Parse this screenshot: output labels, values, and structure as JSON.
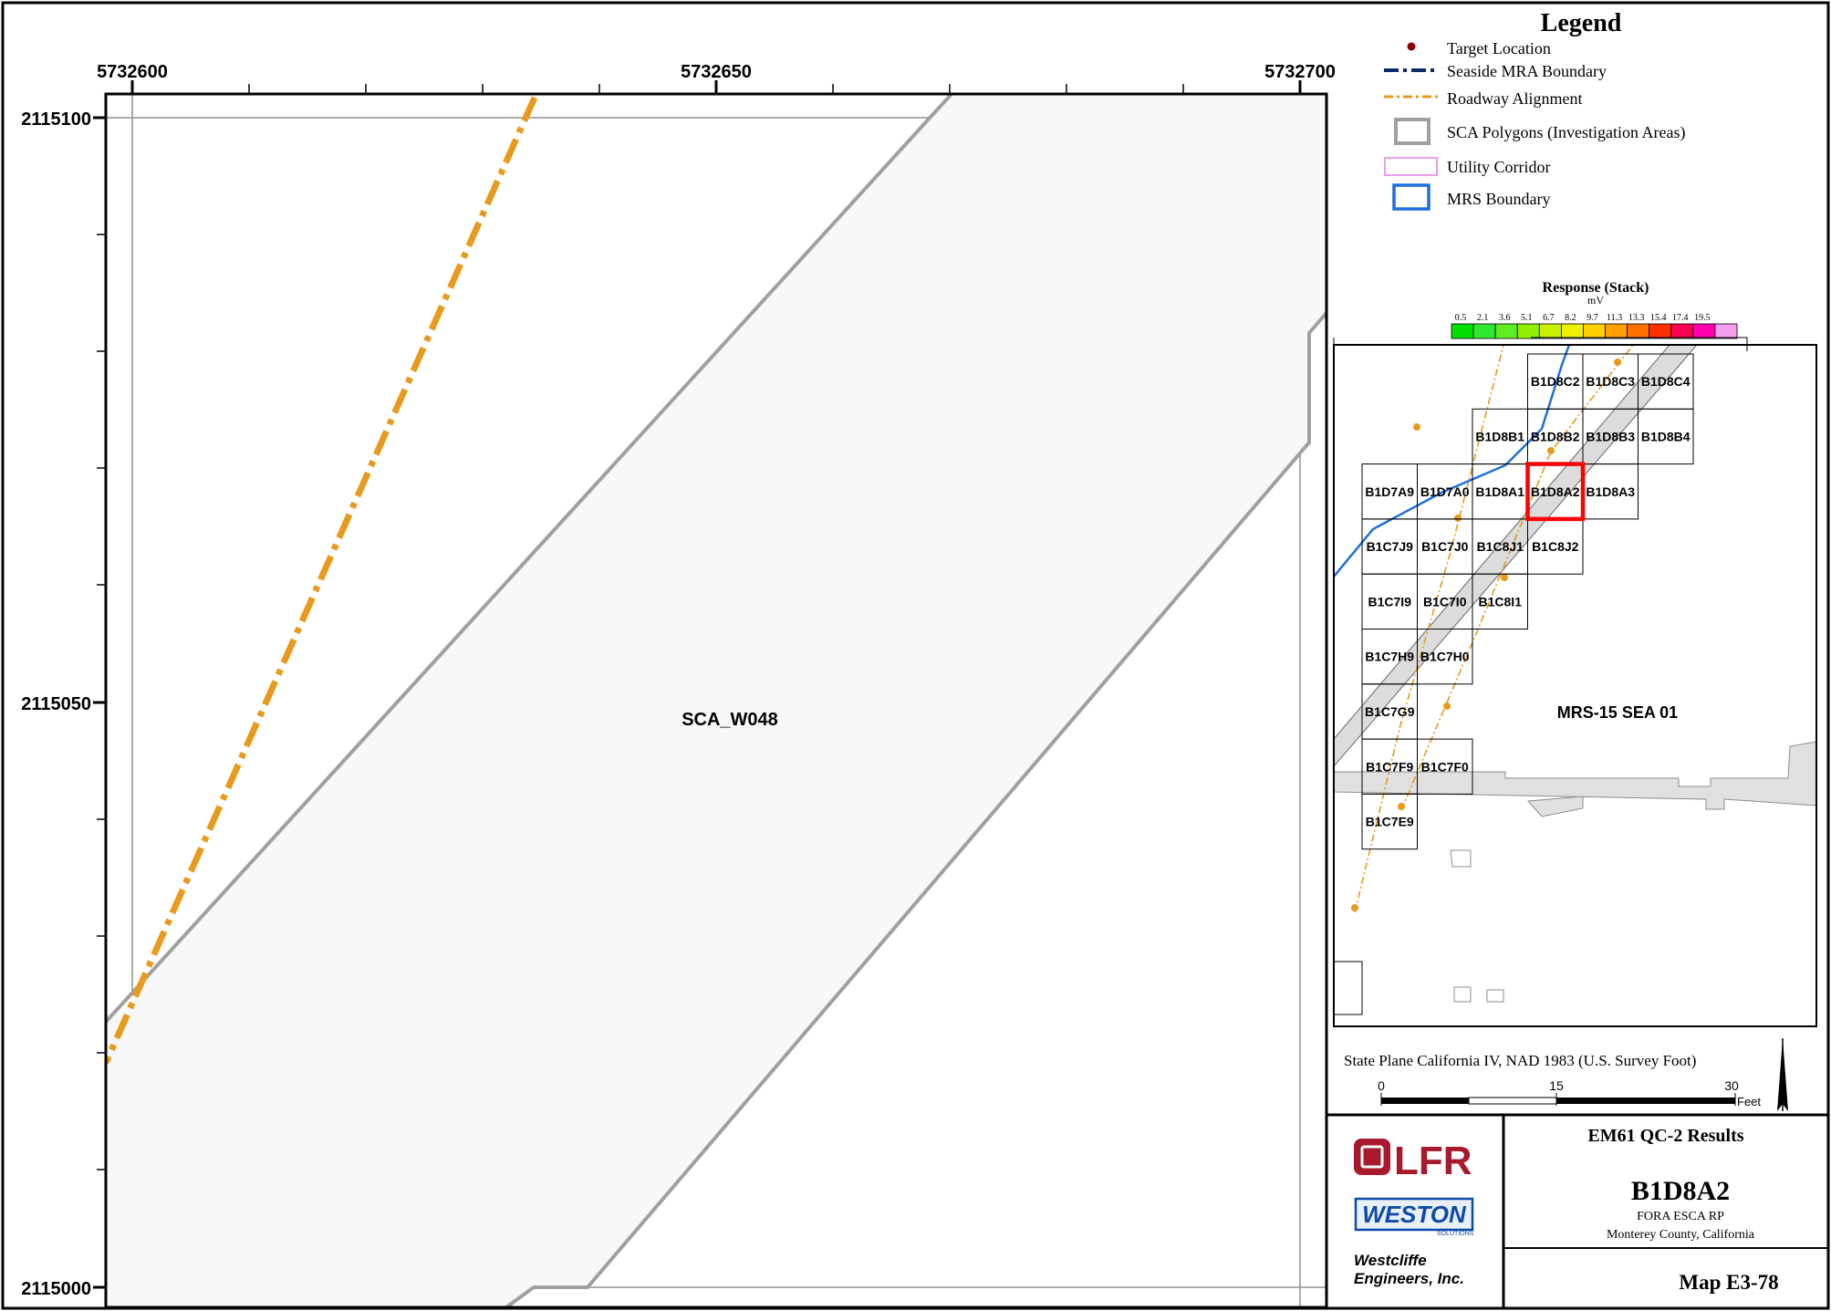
{
  "map": {
    "x_ticks": [
      "5732600",
      "5732650",
      "5732700"
    ],
    "y_ticks": [
      "2115100",
      "2115050",
      "2115000"
    ],
    "area_label": "SCA_W048"
  },
  "legend": {
    "title": "Legend",
    "items": [
      {
        "label": "Target Location",
        "symbol": "target-point",
        "color": "#8b0000"
      },
      {
        "label": "Seaside MRA Boundary",
        "symbol": "dash-dot-line",
        "color": "#0b2a6e"
      },
      {
        "label": "Roadway Alignment",
        "symbol": "dash-dot-line",
        "color": "#e89a1c"
      },
      {
        "label": "SCA Polygons (Investigation Areas)",
        "symbol": "polygon",
        "color": "#a0a0a0"
      },
      {
        "label": "Utility Corridor",
        "symbol": "polygon",
        "color": "#e8a0e8"
      },
      {
        "label": "MRS Boundary",
        "symbol": "polygon",
        "color": "#1e6fd9"
      }
    ]
  },
  "response_scale": {
    "title": "Response (Stack)",
    "unit": "mV",
    "ticks": [
      "0.5",
      "2.1",
      "3.6",
      "5.1",
      "6.7",
      "8.2",
      "9.7",
      "11.3",
      "13.3",
      "15.4",
      "17.4",
      "19.5"
    ],
    "colors": [
      "#00e000",
      "#30e830",
      "#60ee20",
      "#90f000",
      "#c8f000",
      "#f0f000",
      "#ffd000",
      "#ffa000",
      "#ff7000",
      "#ff3000",
      "#ff0050",
      "#ff00b0",
      "#f4a0f0"
    ]
  },
  "inset": {
    "grids": [
      {
        "id": "B1D8C2",
        "col": 3,
        "row": 0
      },
      {
        "id": "B1D8C3",
        "col": 4,
        "row": 0
      },
      {
        "id": "B1D8C4",
        "col": 5,
        "row": 0
      },
      {
        "id": "B1D8B1",
        "col": 2,
        "row": 1
      },
      {
        "id": "B1D8B2",
        "col": 3,
        "row": 1
      },
      {
        "id": "B1D8B3",
        "col": 4,
        "row": 1
      },
      {
        "id": "B1D8B4",
        "col": 5,
        "row": 1
      },
      {
        "id": "B1D7A9",
        "col": 0,
        "row": 2
      },
      {
        "id": "B1D7A0",
        "col": 1,
        "row": 2
      },
      {
        "id": "B1D8A1",
        "col": 2,
        "row": 2
      },
      {
        "id": "B1D8A2",
        "col": 3,
        "row": 2
      },
      {
        "id": "B1D8A3",
        "col": 4,
        "row": 2
      },
      {
        "id": "B1C7J9",
        "col": 0,
        "row": 3
      },
      {
        "id": "B1C7J0",
        "col": 1,
        "row": 3
      },
      {
        "id": "B1C8J1",
        "col": 2,
        "row": 3
      },
      {
        "id": "B1C8J2",
        "col": 3,
        "row": 3
      },
      {
        "id": "B1C7I9",
        "col": 0,
        "row": 4
      },
      {
        "id": "B1C7I0",
        "col": 1,
        "row": 4
      },
      {
        "id": "B1C8I1",
        "col": 2,
        "row": 4
      },
      {
        "id": "B1C7H9",
        "col": 0,
        "row": 5
      },
      {
        "id": "B1C7H0",
        "col": 1,
        "row": 5
      },
      {
        "id": "B1C7G9",
        "col": 0,
        "row": 6
      },
      {
        "id": "B1C7F9",
        "col": 0,
        "row": 7
      },
      {
        "id": "B1C7F0",
        "col": 1,
        "row": 7
      },
      {
        "id": "B1C7E9",
        "col": 0,
        "row": 8
      }
    ],
    "highlighted": "B1D8A2",
    "mrs_label": "MRS-15 SEA 01"
  },
  "scale_bar": {
    "projection": "State Plane California IV, NAD 1983 (U.S. Survey Foot)",
    "ticks": [
      "0",
      "15",
      "30"
    ],
    "unit": "Feet"
  },
  "title_block": {
    "lfr_logo": "LFR",
    "weston_logo": "WESTON",
    "weston_sub": "SOLUTIONS",
    "company": "Westcliffe\nEngineers, Inc.",
    "heading": "EM61 QC-2 Results",
    "grid_id": "B1D8A2",
    "project": "FORA ESCA RP",
    "location": "Monterey County, California",
    "map_number": "Map E3-78"
  }
}
